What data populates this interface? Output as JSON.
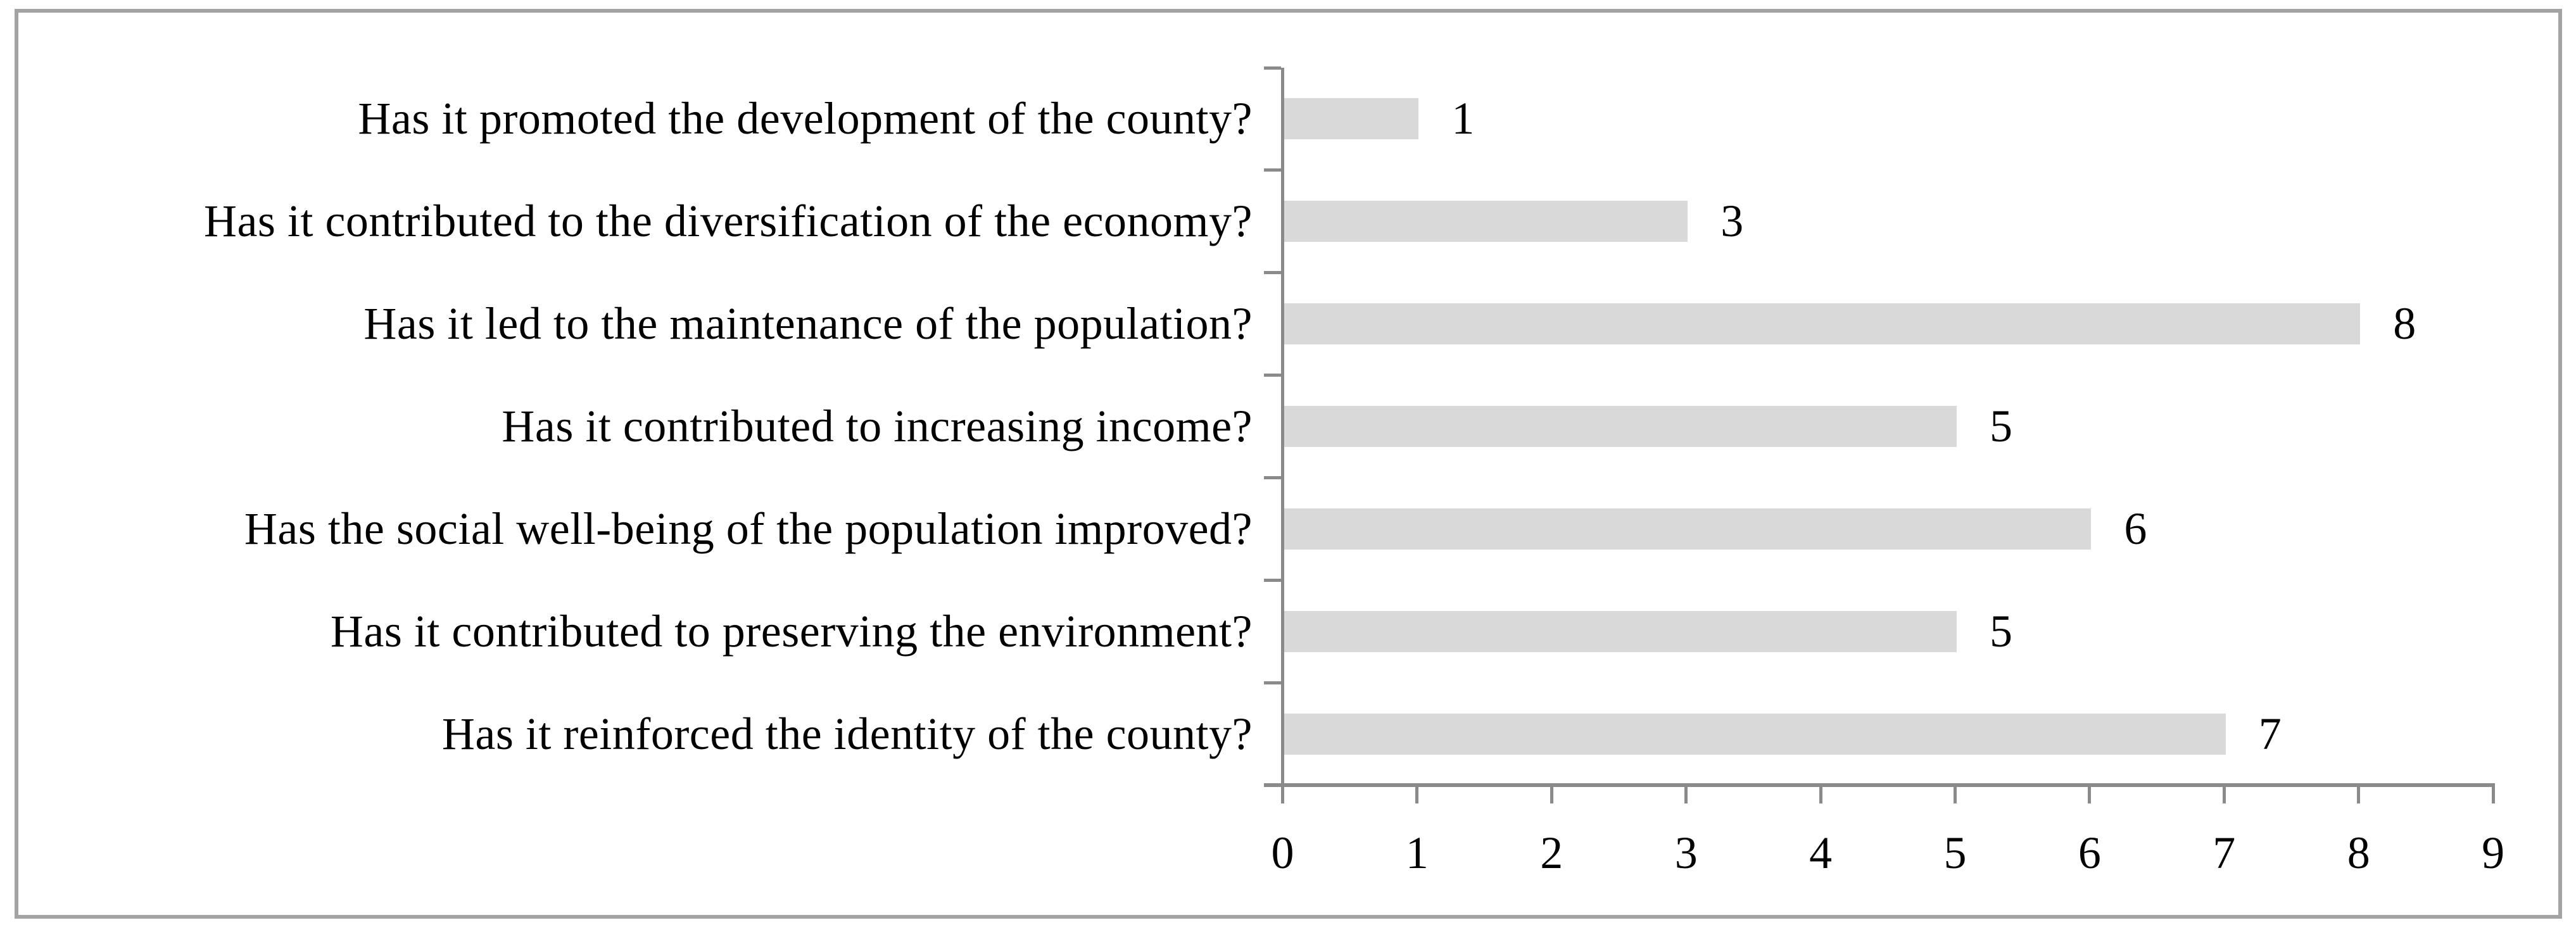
{
  "chart_data": {
    "type": "bar",
    "orientation": "horizontal",
    "title": "",
    "xlabel": "",
    "ylabel": "",
    "categories": [
      "Has it promoted the development of the county?",
      "Has it contributed to the diversification of the economy?",
      "Has it led to the maintenance of the population?",
      "Has it contributed to increasing income?",
      "Has the social well-being of the population improved?",
      "Has it contributed to preserving the environment?",
      "Has it reinforced the identity of the county?"
    ],
    "values": [
      1,
      3,
      8,
      5,
      6,
      5,
      7
    ],
    "data_labels": [
      "1",
      "3",
      "8",
      "5",
      "6",
      "5",
      "7"
    ],
    "xticks": [
      "0",
      "1",
      "2",
      "3",
      "4",
      "5",
      "6",
      "7",
      "8",
      "9"
    ],
    "xlim": [
      0,
      9
    ],
    "grid": false,
    "legend": false
  },
  "colors": {
    "bar_fill": "#d9d9d9",
    "axis_gray": "#8a8a8a",
    "frame_gray": "#a3a3a3",
    "text_black": "#000000",
    "background": "#ffffff"
  }
}
